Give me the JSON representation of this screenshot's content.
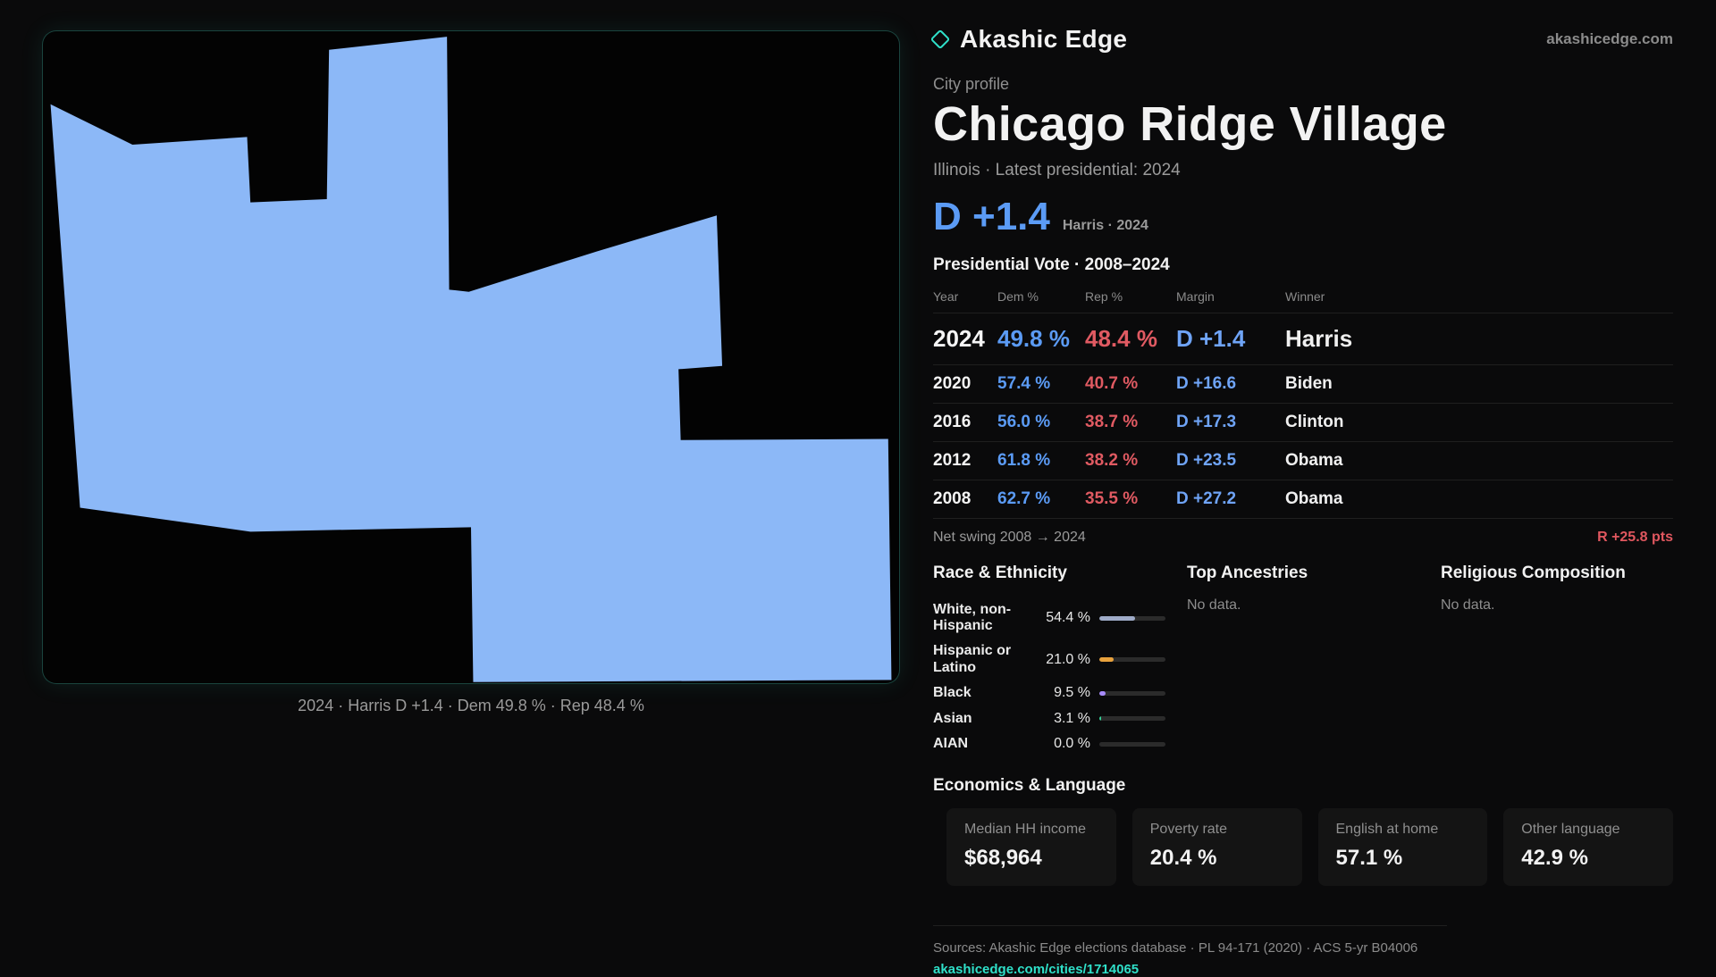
{
  "brand": {
    "name": "Akashic Edge",
    "domain": "akashicedge.com"
  },
  "profile": {
    "kicker": "City profile",
    "title": "Chicago Ridge Village",
    "subtitle": "Illinois · Latest presidential: 2024",
    "headline_margin": "D +1.4",
    "headline_detail": "Harris · 2024"
  },
  "map": {
    "fill": "#8cb8f7",
    "caption": "2024 · Harris D +1.4 · Dem 49.8 % · Rep 48.4 %"
  },
  "vote_table": {
    "title": "Presidential Vote · 2008–2024",
    "columns": [
      "Year",
      "Dem %",
      "Rep %",
      "Margin",
      "Winner"
    ],
    "rows": [
      {
        "year": "2024",
        "dem": "49.8 %",
        "rep": "48.4 %",
        "margin": "D +1.4",
        "winner": "Harris"
      },
      {
        "year": "2020",
        "dem": "57.4 %",
        "rep": "40.7 %",
        "margin": "D +16.6",
        "winner": "Biden"
      },
      {
        "year": "2016",
        "dem": "56.0 %",
        "rep": "38.7 %",
        "margin": "D +17.3",
        "winner": "Clinton"
      },
      {
        "year": "2012",
        "dem": "61.8 %",
        "rep": "38.2 %",
        "margin": "D +23.5",
        "winner": "Obama"
      },
      {
        "year": "2008",
        "dem": "62.7 %",
        "rep": "35.5 %",
        "margin": "D +27.2",
        "winner": "Obama"
      }
    ]
  },
  "net_swing": {
    "label": "Net swing 2008 → 2024",
    "value": "R +25.8 pts"
  },
  "demographics": {
    "race": {
      "title": "Race & Ethnicity",
      "rows": [
        {
          "label": "White, non-Hispanic",
          "value": "54.4 %",
          "pct": 54.4,
          "color": "#9fabc8"
        },
        {
          "label": "Hispanic or Latino",
          "value": "21.0 %",
          "pct": 21.0,
          "color": "#e8a23d"
        },
        {
          "label": "Black",
          "value": "9.5 %",
          "pct": 9.5,
          "color": "#a78bfa"
        },
        {
          "label": "Asian",
          "value": "3.1 %",
          "pct": 3.1,
          "color": "#34d399"
        },
        {
          "label": "AIAN",
          "value": "0.0 %",
          "pct": 0,
          "color": "#9fabc8"
        }
      ]
    },
    "ancestries": {
      "title": "Top Ancestries",
      "empty": "No data."
    },
    "religion": {
      "title": "Religious Composition",
      "empty": "No data."
    }
  },
  "economics": {
    "title": "Economics & Language",
    "stats": [
      {
        "label": "Median HH income",
        "value": "$68,964"
      },
      {
        "label": "Poverty rate",
        "value": "20.4 %"
      },
      {
        "label": "English at home",
        "value": "57.1 %"
      },
      {
        "label": "Other language",
        "value": "42.9 %"
      }
    ]
  },
  "footer": {
    "sources": "Sources: Akashic Edge elections database · PL 94-171 (2020) · ACS 5-yr B04006",
    "link": "akashicedge.com/cities/1714065"
  },
  "colors": {
    "accent": "#2fe0c9",
    "dem": "#5b9bf5",
    "rep": "#e05a62"
  }
}
